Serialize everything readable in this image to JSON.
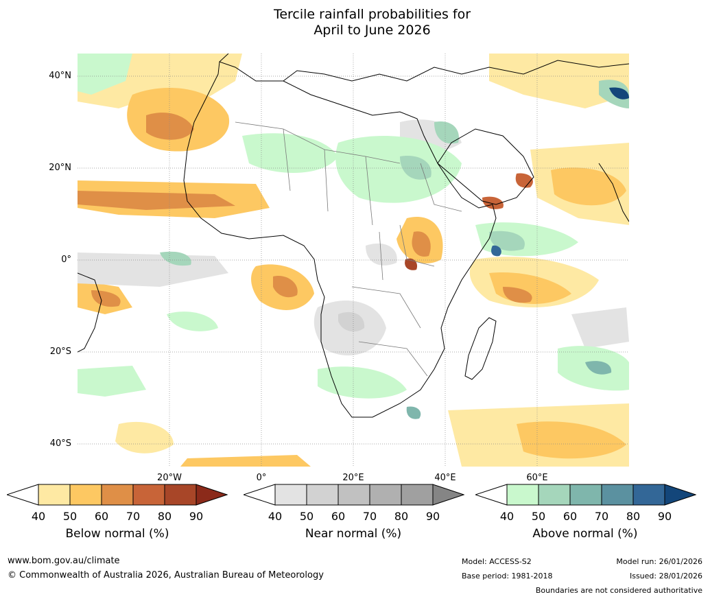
{
  "title": {
    "line1": "Tercile rainfall probabilities for",
    "line2": "April to June 2026"
  },
  "map": {
    "lat_labels": [
      "40°N",
      "20°N",
      "0°",
      "20°S",
      "40°S"
    ],
    "lon_labels": [
      "20°W",
      "0°",
      "20°E",
      "40°E",
      "60°E"
    ]
  },
  "colorbars": [
    {
      "name": "below",
      "title": "Below normal (%)",
      "ticks": [
        "40",
        "50",
        "60",
        "70",
        "80",
        "90"
      ],
      "colors": [
        "#ffffff",
        "#fee9a3",
        "#fdc862",
        "#df8f47",
        "#c86438",
        "#a84628",
        "#8b2a1a"
      ]
    },
    {
      "name": "near",
      "title": "Near normal (%)",
      "ticks": [
        "40",
        "50",
        "60",
        "70",
        "80",
        "90"
      ],
      "colors": [
        "#ffffff",
        "#e3e3e3",
        "#d2d2d2",
        "#c1c1c1",
        "#b0b0b0",
        "#a0a0a0",
        "#858585"
      ]
    },
    {
      "name": "above",
      "title": "Above normal (%)",
      "ticks": [
        "40",
        "50",
        "60",
        "70",
        "80",
        "90"
      ],
      "colors": [
        "#ffffff",
        "#c9f8cd",
        "#a5d6bb",
        "#7fb6ac",
        "#5b91a0",
        "#336797",
        "#13467a"
      ]
    }
  ],
  "footer": {
    "website": "www.bom.gov.au/climate",
    "copyright": "© Commonwealth of Australia 2026, Australian Bureau of Meteorology",
    "model": "Model: ACCESS-S2",
    "base_period": "Base period: 1981-2018",
    "model_run": "Model run: 26/01/2026",
    "issued": "Issued: 28/01/2026",
    "disclaimer": "Boundaries are not considered authoritative"
  }
}
